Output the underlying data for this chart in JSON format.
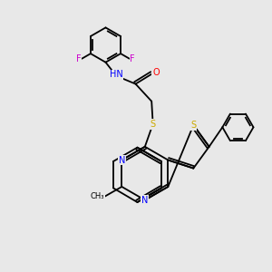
{
  "bg_color": "#e8e8e8",
  "bond_color": "#000000",
  "atom_colors": {
    "N": "#0000ff",
    "S": "#ccaa00",
    "O": "#ff0000",
    "F": "#cc00cc",
    "H": "#777777"
  }
}
